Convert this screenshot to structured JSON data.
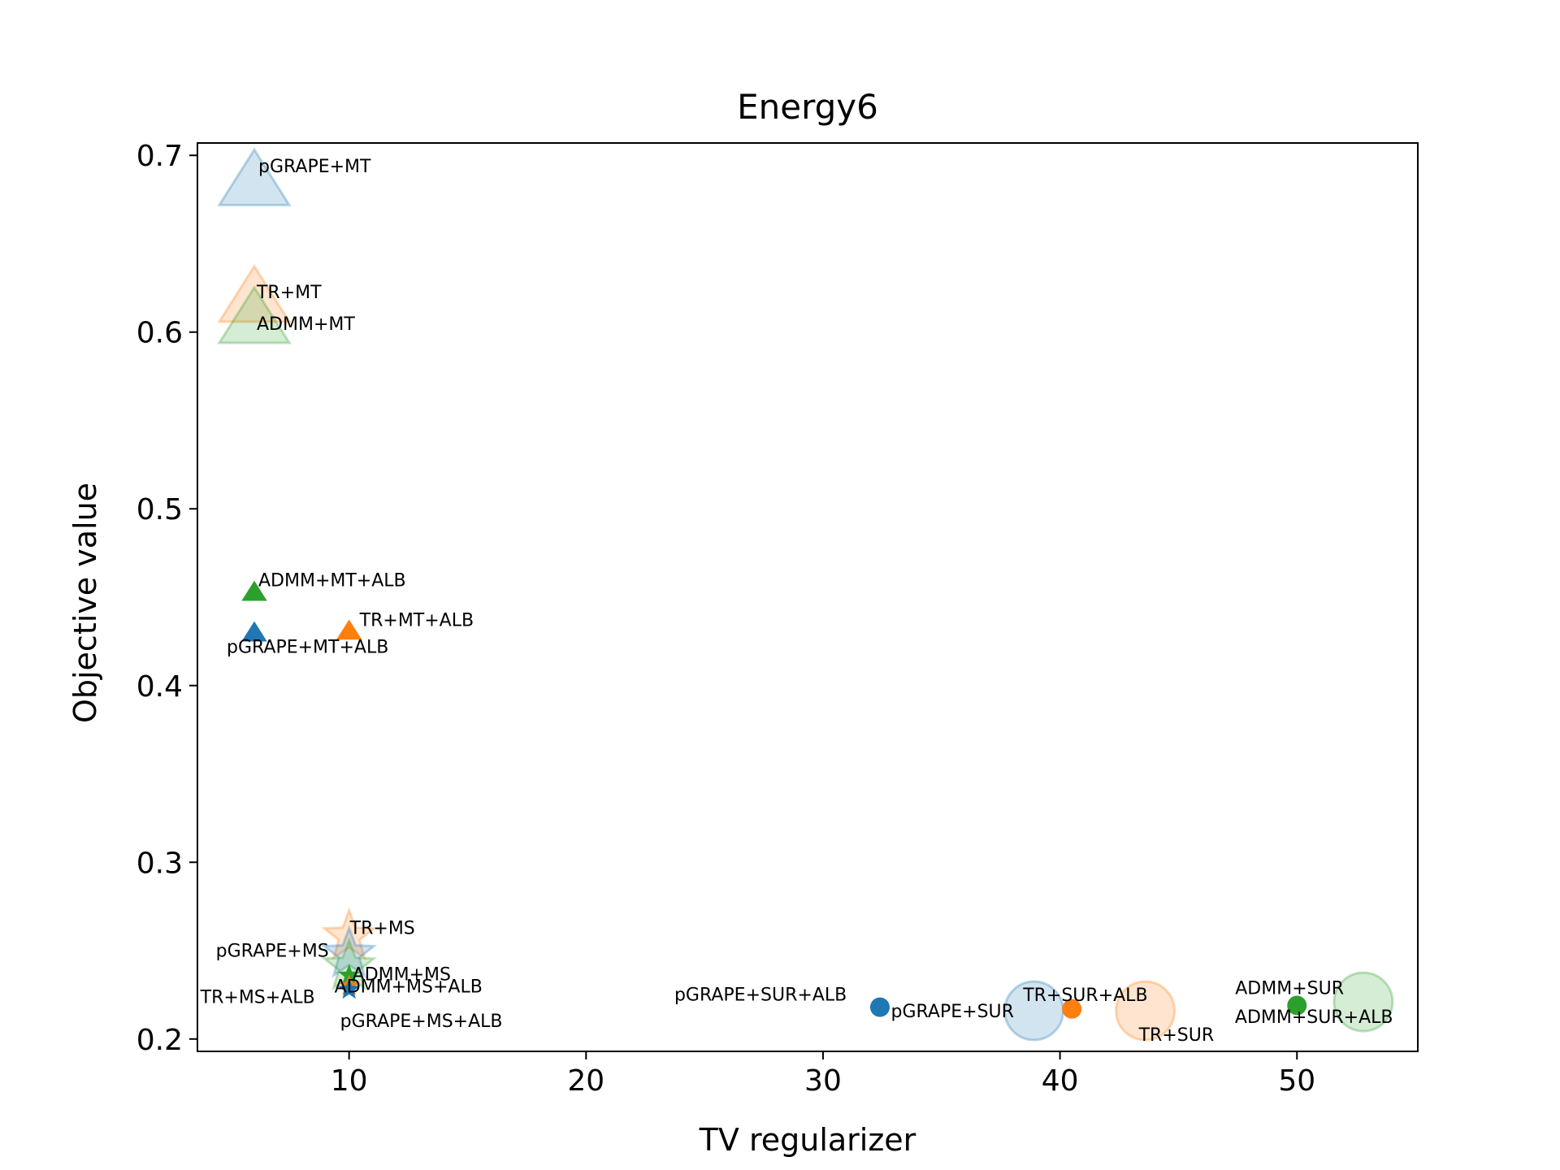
{
  "chart_data": {
    "type": "scatter",
    "title": "Energy6",
    "xlabel": "TV regularizer",
    "ylabel": "Objective value",
    "xlim": [
      3.6,
      55.1
    ],
    "ylim": [
      0.193,
      0.707
    ],
    "xticks": [
      10,
      20,
      30,
      40,
      50
    ],
    "yticks": [
      0.2,
      0.3,
      0.4,
      0.5,
      0.6,
      0.7
    ],
    "xtick_labels": [
      "10",
      "20",
      "30",
      "40",
      "50"
    ],
    "ytick_labels": [
      "0.2",
      "0.3",
      "0.4",
      "0.5",
      "0.6",
      "0.7"
    ],
    "grid": false,
    "legend": "none",
    "colors": {
      "pGRAPE": "#1f77b4",
      "TR": "#ff7f0e",
      "ADMM": "#2ca02c"
    },
    "points": [
      {
        "label": "pGRAPE+MT",
        "x": 6.0,
        "y": 0.683,
        "marker": "triangle",
        "method": "pGRAPE",
        "large": true
      },
      {
        "label": "TR+MT",
        "x": 6.0,
        "y": 0.617,
        "marker": "triangle",
        "method": "TR",
        "large": true
      },
      {
        "label": "ADMM+MT",
        "x": 6.0,
        "y": 0.605,
        "marker": "triangle",
        "method": "ADMM",
        "large": true
      },
      {
        "label": "ADMM+MT+ALB",
        "x": 6.0,
        "y": 0.452,
        "marker": "triangle",
        "method": "ADMM",
        "large": false
      },
      {
        "label": "pGRAPE+MT+ALB",
        "x": 6.0,
        "y": 0.429,
        "marker": "triangle",
        "method": "pGRAPE",
        "large": false
      },
      {
        "label": "TR+MT+ALB",
        "x": 10.0,
        "y": 0.43,
        "marker": "triangle",
        "method": "TR",
        "large": false
      },
      {
        "label": "TR+MS",
        "x": 10.0,
        "y": 0.258,
        "marker": "star",
        "method": "TR",
        "large": true
      },
      {
        "label": "pGRAPE+MS",
        "x": 10.0,
        "y": 0.248,
        "marker": "star",
        "method": "pGRAPE",
        "large": true
      },
      {
        "label": "ADMM+MS",
        "x": 10.0,
        "y": 0.241,
        "marker": "star",
        "method": "ADMM",
        "large": true
      },
      {
        "label": "ADMM+MS+ALB",
        "x": 10.0,
        "y": 0.236,
        "marker": "star",
        "method": "ADMM",
        "large": false
      },
      {
        "label": "TR+MS+ALB",
        "x": 10.0,
        "y": 0.23,
        "marker": "star",
        "method": "TR",
        "large": false
      },
      {
        "label": "pGRAPE+MS+ALB",
        "x": 10.0,
        "y": 0.228,
        "marker": "star",
        "method": "pGRAPE",
        "large": false
      },
      {
        "label": "pGRAPE+SUR+ALB",
        "x": 32.4,
        "y": 0.218,
        "marker": "circle",
        "method": "pGRAPE",
        "large": false
      },
      {
        "label": "pGRAPE+SUR",
        "x": 38.9,
        "y": 0.216,
        "marker": "circle",
        "method": "pGRAPE",
        "large": true
      },
      {
        "label": "TR+SUR+ALB",
        "x": 40.5,
        "y": 0.217,
        "marker": "circle",
        "method": "TR",
        "large": false
      },
      {
        "label": "TR+SUR",
        "x": 43.6,
        "y": 0.216,
        "marker": "circle",
        "method": "TR",
        "large": true
      },
      {
        "label": "ADMM+SUR",
        "x": 50.0,
        "y": 0.219,
        "marker": "circle",
        "method": "ADMM",
        "large": false
      },
      {
        "label": "ADMM+SUR+ALB",
        "x": 52.8,
        "y": 0.221,
        "marker": "circle",
        "method": "ADMM",
        "large": true
      }
    ]
  }
}
